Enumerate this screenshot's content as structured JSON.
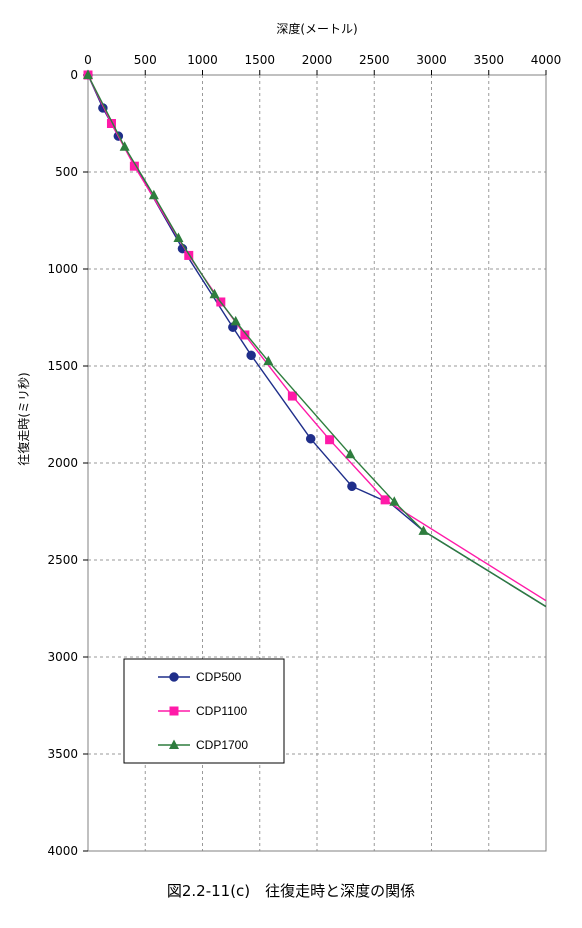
{
  "caption": "図2.2-11(c)　往復走時と深度の関係",
  "chart_data": {
    "type": "line",
    "xlabel": "深度(メートル)",
    "ylabel": "往復走時(ミリ秒)",
    "xlim": [
      0,
      4000
    ],
    "ylim": [
      0,
      4000
    ],
    "y_inverted": true,
    "x_axis_position": "top",
    "xticks": [
      0,
      500,
      1000,
      1500,
      2000,
      2500,
      3000,
      3500,
      4000
    ],
    "yticks": [
      0,
      500,
      1000,
      1500,
      2000,
      2500,
      3000,
      3500,
      4000
    ],
    "grid": true,
    "legend_position": "bottom-left",
    "series": [
      {
        "name": "CDP500",
        "color": "#1f2e8a",
        "marker": "circle",
        "points": [
          [
            0,
            0
          ],
          [
            130,
            170
          ],
          [
            265,
            315
          ],
          [
            825,
            895
          ],
          [
            1265,
            1300
          ],
          [
            1425,
            1445
          ],
          [
            1945,
            1875
          ],
          [
            2305,
            2120
          ],
          [
            2645,
            2210
          ],
          [
            2930,
            2350
          ],
          [
            4000,
            2740
          ]
        ],
        "marked": [
          true,
          true,
          true,
          true,
          true,
          true,
          true,
          true,
          false,
          false,
          false
        ]
      },
      {
        "name": "CDP1100",
        "color": "#ff1aa8",
        "marker": "square",
        "points": [
          [
            0,
            0
          ],
          [
            205,
            250
          ],
          [
            405,
            470
          ],
          [
            880,
            930
          ],
          [
            1160,
            1170
          ],
          [
            1370,
            1340
          ],
          [
            1785,
            1655
          ],
          [
            2110,
            1880
          ],
          [
            2595,
            2190
          ],
          [
            4000,
            2710
          ]
        ],
        "marked": [
          true,
          true,
          true,
          true,
          true,
          true,
          true,
          true,
          true,
          false
        ]
      },
      {
        "name": "CDP1700",
        "color": "#2e7d3e",
        "marker": "triangle",
        "points": [
          [
            0,
            0
          ],
          [
            320,
            370
          ],
          [
            575,
            620
          ],
          [
            790,
            840
          ],
          [
            1105,
            1130
          ],
          [
            1290,
            1270
          ],
          [
            1575,
            1475
          ],
          [
            2290,
            1955
          ],
          [
            2675,
            2200
          ],
          [
            2930,
            2350
          ],
          [
            4000,
            2740
          ]
        ],
        "marked": [
          true,
          true,
          true,
          true,
          true,
          true,
          true,
          true,
          true,
          true,
          false
        ]
      }
    ]
  }
}
